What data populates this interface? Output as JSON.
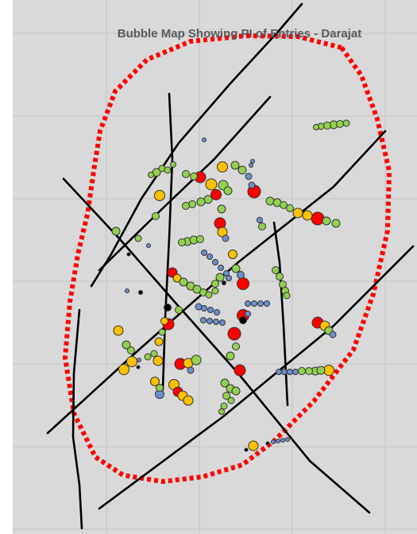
{
  "chart_data": {
    "type": "scatter",
    "title": "Bubble Map Showing PI of Entries - Darajat",
    "xlabel": "",
    "ylabel": "",
    "grid": true,
    "colors": {
      "background": "#d9d9d9",
      "grid": "#c4c4c4",
      "boundary": "#ff0000",
      "fault": "#000000",
      "marker_outline": "#333333"
    },
    "categories": [
      {
        "name": "red",
        "color": "#ff0000"
      },
      {
        "name": "yellow",
        "color": "#ffc000"
      },
      {
        "name": "green",
        "color": "#92d050"
      },
      {
        "name": "blue",
        "color": "#6e8fcc"
      },
      {
        "name": "black",
        "color": "#000000"
      }
    ],
    "boundary": [
      [
        430,
        60
      ],
      [
        455,
        95
      ],
      [
        475,
        150
      ],
      [
        490,
        215
      ],
      [
        488,
        290
      ],
      [
        470,
        370
      ],
      [
        445,
        440
      ],
      [
        395,
        505
      ],
      [
        345,
        555
      ],
      [
        305,
        585
      ],
      [
        255,
        600
      ],
      [
        205,
        606
      ],
      [
        155,
        598
      ],
      [
        120,
        575
      ],
      [
        93,
        520
      ],
      [
        82,
        450
      ],
      [
        88,
        380
      ],
      [
        98,
        320
      ],
      [
        110,
        270
      ],
      [
        118,
        215
      ],
      [
        126,
        165
      ],
      [
        145,
        115
      ],
      [
        185,
        75
      ],
      [
        240,
        52
      ],
      [
        310,
        45
      ],
      [
        375,
        46
      ],
      [
        430,
        60
      ]
    ],
    "faults": [
      [
        [
          115,
          360
        ],
        [
          140,
          320
        ],
        [
          178,
          250
        ],
        [
          225,
          180
        ],
        [
          290,
          105
        ],
        [
          350,
          40
        ],
        [
          380,
          5
        ]
      ],
      [
        [
          125,
          340
        ],
        [
          205,
          262
        ],
        [
          270,
          200
        ],
        [
          340,
          122
        ]
      ],
      [
        [
          213,
          118
        ],
        [
          217,
          200
        ],
        [
          213,
          300
        ],
        [
          208,
          400
        ],
        [
          205,
          490
        ]
      ],
      [
        [
          80,
          225
        ],
        [
          150,
          300
        ],
        [
          220,
          380
        ],
        [
          300,
          470
        ],
        [
          390,
          580
        ],
        [
          465,
          645
        ]
      ],
      [
        [
          60,
          545
        ],
        [
          175,
          440
        ],
        [
          300,
          330
        ],
        [
          420,
          235
        ],
        [
          485,
          165
        ]
      ],
      [
        [
          125,
          640
        ],
        [
          280,
          525
        ],
        [
          420,
          410
        ],
        [
          520,
          310
        ]
      ],
      [
        [
          345,
          280
        ],
        [
          352,
          330
        ],
        [
          357,
          410
        ],
        [
          362,
          510
        ]
      ],
      [
        [
          100,
          390
        ],
        [
          93,
          470
        ],
        [
          92,
          550
        ],
        [
          100,
          610
        ],
        [
          103,
          665
        ]
      ]
    ],
    "points": [
      [
        420,
        157,
        10,
        "green"
      ],
      [
        412,
        158,
        9,
        "green"
      ],
      [
        404,
        159,
        8,
        "green"
      ],
      [
        428,
        156,
        9,
        "green"
      ],
      [
        436,
        155,
        8,
        "green"
      ],
      [
        398,
        160,
        7,
        "green"
      ],
      [
        197,
        217,
        10,
        "green"
      ],
      [
        204,
        212,
        8,
        "green"
      ],
      [
        211,
        214,
        8,
        "green"
      ],
      [
        190,
        220,
        7,
        "green"
      ],
      [
        201,
        246,
        13,
        "yellow"
      ],
      [
        196,
        272,
        9,
        "green"
      ],
      [
        218,
        207,
        7,
        "green"
      ],
      [
        234,
        219,
        9,
        "green"
      ],
      [
        244,
        222,
        9,
        "green"
      ],
      [
        252,
        223,
        14,
        "red"
      ],
      [
        266,
        232,
        14,
        "yellow"
      ],
      [
        281,
        233,
        12,
        "green"
      ],
      [
        287,
        240,
        10,
        "green"
      ],
      [
        272,
        245,
        13,
        "red"
      ],
      [
        262,
        251,
        10,
        "green"
      ],
      [
        253,
        254,
        10,
        "green"
      ],
      [
        242,
        257,
        9,
        "green"
      ],
      [
        234,
        259,
        9,
        "green"
      ],
      [
        280,
        210,
        13,
        "yellow"
      ],
      [
        296,
        208,
        10,
        "green"
      ],
      [
        305,
        214,
        10,
        "green"
      ],
      [
        313,
        222,
        8,
        "blue"
      ],
      [
        317,
        233,
        8,
        "blue"
      ],
      [
        320,
        241,
        16,
        "red"
      ],
      [
        316,
        208,
        5,
        "blue"
      ],
      [
        318,
        203,
        5,
        "blue"
      ],
      [
        257,
        176,
        5,
        "blue"
      ],
      [
        340,
        253,
        10,
        "green"
      ],
      [
        349,
        255,
        10,
        "green"
      ],
      [
        357,
        258,
        9,
        "green"
      ],
      [
        365,
        262,
        9,
        "green"
      ],
      [
        375,
        268,
        12,
        "yellow"
      ],
      [
        387,
        271,
        12,
        "yellow"
      ],
      [
        400,
        275,
        16,
        "red"
      ],
      [
        411,
        278,
        10,
        "green"
      ],
      [
        423,
        281,
        10,
        "green"
      ],
      [
        330,
        285,
        9,
        "green"
      ],
      [
        327,
        277,
        7,
        "blue"
      ],
      [
        146,
        291,
        10,
        "green"
      ],
      [
        174,
        300,
        8,
        "green"
      ],
      [
        187,
        309,
        5,
        "blue"
      ],
      [
        162,
        320,
        4,
        "black"
      ],
      [
        277,
        281,
        14,
        "red"
      ],
      [
        280,
        292,
        12,
        "yellow"
      ],
      [
        284,
        300,
        8,
        "blue"
      ],
      [
        279,
        263,
        10,
        "green"
      ],
      [
        236,
        304,
        10,
        "green"
      ],
      [
        244,
        302,
        10,
        "green"
      ],
      [
        252,
        301,
        9,
        "green"
      ],
      [
        229,
        305,
        9,
        "green"
      ],
      [
        257,
        318,
        7,
        "blue"
      ],
      [
        264,
        323,
        7,
        "blue"
      ],
      [
        271,
        330,
        7,
        "blue"
      ],
      [
        278,
        337,
        7,
        "blue"
      ],
      [
        285,
        344,
        7,
        "blue"
      ],
      [
        293,
        320,
        11,
        "yellow"
      ],
      [
        277,
        349,
        10,
        "green"
      ],
      [
        271,
        357,
        9,
        "green"
      ],
      [
        271,
        366,
        8,
        "green"
      ],
      [
        282,
        356,
        5,
        "black"
      ],
      [
        297,
        338,
        10,
        "green"
      ],
      [
        303,
        346,
        9,
        "blue"
      ],
      [
        217,
        343,
        12,
        "red"
      ],
      [
        223,
        350,
        10,
        "yellow"
      ],
      [
        231,
        355,
        10,
        "green"
      ],
      [
        240,
        360,
        10,
        "green"
      ],
      [
        248,
        364,
        10,
        "green"
      ],
      [
        256,
        368,
        9,
        "green"
      ],
      [
        263,
        371,
        8,
        "green"
      ],
      [
        250,
        386,
        8,
        "blue"
      ],
      [
        257,
        388,
        7,
        "blue"
      ],
      [
        265,
        390,
        7,
        "blue"
      ],
      [
        273,
        393,
        7,
        "blue"
      ],
      [
        256,
        403,
        7,
        "blue"
      ],
      [
        264,
        404,
        7,
        "blue"
      ],
      [
        272,
        405,
        7,
        "blue"
      ],
      [
        280,
        406,
        7,
        "blue"
      ],
      [
        288,
        350,
        7,
        "blue"
      ],
      [
        306,
        357,
        15,
        "red"
      ],
      [
        312,
        382,
        7,
        "blue"
      ],
      [
        320,
        382,
        7,
        "blue"
      ],
      [
        328,
        382,
        7,
        "blue"
      ],
      [
        336,
        382,
        7,
        "blue"
      ],
      [
        306,
        397,
        15,
        "red"
      ],
      [
        306,
        403,
        9,
        "black"
      ],
      [
        312,
        395,
        7,
        "blue"
      ],
      [
        347,
        340,
        9,
        "green"
      ],
      [
        352,
        348,
        9,
        "green"
      ],
      [
        356,
        358,
        9,
        "green"
      ],
      [
        359,
        366,
        9,
        "green"
      ],
      [
        361,
        372,
        8,
        "green"
      ],
      [
        211,
        387,
        9,
        "black"
      ],
      [
        225,
        390,
        9,
        "green"
      ],
      [
        212,
        408,
        14,
        "red"
      ],
      [
        207,
        404,
        9,
        "yellow"
      ],
      [
        177,
        368,
        5,
        "black"
      ],
      [
        160,
        366,
        5,
        "blue"
      ],
      [
        295,
        420,
        16,
        "red"
      ],
      [
        297,
        436,
        9,
        "green"
      ],
      [
        290,
        448,
        10,
        "green"
      ],
      [
        302,
        466,
        14,
        "red"
      ],
      [
        400,
        406,
        14,
        "red"
      ],
      [
        409,
        410,
        12,
        "yellow"
      ],
      [
        414,
        416,
        10,
        "green"
      ],
      [
        419,
        421,
        8,
        "blue"
      ],
      [
        351,
        468,
        7,
        "blue"
      ],
      [
        358,
        468,
        7,
        "blue"
      ],
      [
        365,
        468,
        7,
        "blue"
      ],
      [
        372,
        468,
        7,
        "blue"
      ],
      [
        380,
        467,
        9,
        "green"
      ],
      [
        389,
        467,
        9,
        "green"
      ],
      [
        397,
        467,
        10,
        "green"
      ],
      [
        404,
        466,
        10,
        "green"
      ],
      [
        414,
        466,
        13,
        "yellow"
      ],
      [
        149,
        416,
        12,
        "yellow"
      ],
      [
        159,
        434,
        10,
        "green"
      ],
      [
        165,
        441,
        9,
        "green"
      ],
      [
        200,
        430,
        10,
        "yellow"
      ],
      [
        204,
        418,
        8,
        "green"
      ],
      [
        199,
        454,
        12,
        "yellow"
      ],
      [
        186,
        449,
        8,
        "green"
      ],
      [
        194,
        445,
        8,
        "green"
      ],
      [
        166,
        455,
        13,
        "yellow"
      ],
      [
        156,
        465,
        13,
        "yellow"
      ],
      [
        175,
        453,
        5,
        "blue"
      ],
      [
        174,
        462,
        4,
        "black"
      ],
      [
        227,
        458,
        14,
        "red"
      ],
      [
        237,
        457,
        12,
        "yellow"
      ],
      [
        247,
        453,
        12,
        "green"
      ],
      [
        240,
        466,
        8,
        "blue"
      ],
      [
        195,
        480,
        11,
        "yellow"
      ],
      [
        201,
        488,
        9,
        "green"
      ],
      [
        201,
        496,
        11,
        "blue"
      ],
      [
        219,
        484,
        13,
        "yellow"
      ],
      [
        224,
        493,
        12,
        "red"
      ],
      [
        230,
        498,
        12,
        "yellow"
      ],
      [
        237,
        504,
        12,
        "yellow"
      ],
      [
        283,
        482,
        10,
        "green"
      ],
      [
        290,
        489,
        10,
        "green"
      ],
      [
        297,
        492,
        10,
        "green"
      ],
      [
        285,
        498,
        9,
        "green"
      ],
      [
        291,
        504,
        8,
        "green"
      ],
      [
        282,
        511,
        8,
        "green"
      ],
      [
        279,
        518,
        7,
        "green"
      ],
      [
        319,
        561,
        12,
        "yellow"
      ],
      [
        310,
        566,
        4,
        "black"
      ],
      [
        344,
        556,
        5,
        "blue"
      ],
      [
        350,
        555,
        5,
        "blue"
      ],
      [
        356,
        554,
        5,
        "blue"
      ],
      [
        362,
        553,
        5,
        "blue"
      ],
      [
        337,
        558,
        4,
        "black"
      ]
    ]
  }
}
